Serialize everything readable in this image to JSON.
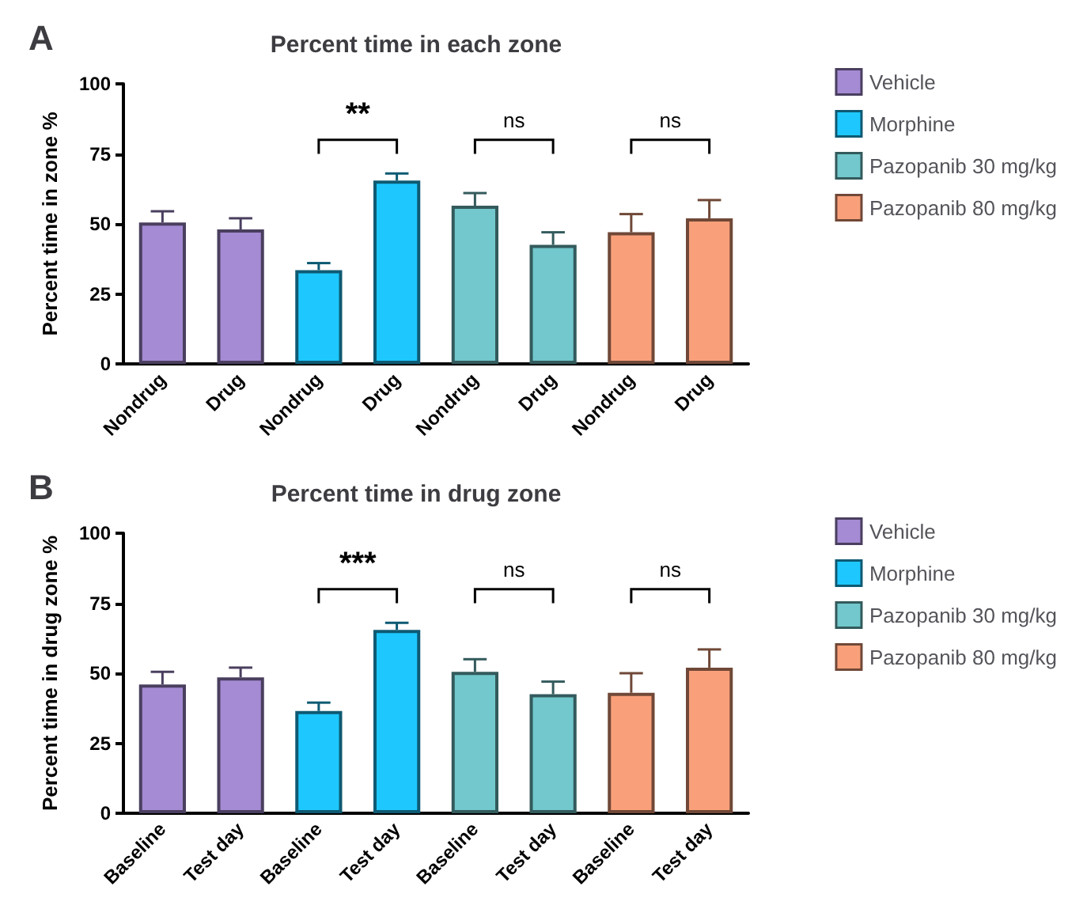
{
  "chart_data": [
    {
      "type": "bar",
      "title": "A",
      "subtitle": "Percent time in each zone",
      "ylabel": "Percent time in zone %",
      "categories": [
        "Nondrug",
        "Drug",
        "Nondrug",
        "Drug",
        "Nondrug",
        "Drug",
        "Nondrug",
        "Drug"
      ],
      "series": [
        {
          "name": "Vehicle",
          "color": "#a58bd4",
          "values": [
            50.5,
            48,
            null,
            null,
            null,
            null,
            null,
            null
          ],
          "errors": [
            4,
            4,
            null,
            null,
            null,
            null,
            null,
            null
          ]
        },
        {
          "name": "Morphine",
          "color": "#1ec8ff",
          "values": [
            null,
            null,
            33.5,
            65.5,
            null,
            null,
            null,
            null
          ],
          "errors": [
            null,
            null,
            2.5,
            2.5,
            null,
            null,
            null,
            null
          ]
        },
        {
          "name": "Pazopanib 30 mg/kg",
          "color": "#72c8cc",
          "values": [
            null,
            null,
            null,
            null,
            56.5,
            42.5,
            null,
            null
          ],
          "errors": [
            null,
            null,
            null,
            null,
            4.5,
            4.5,
            null,
            null
          ]
        },
        {
          "name": "Pazopanib 80 mg/kg",
          "color": "#f9a07a",
          "values": [
            null,
            null,
            null,
            null,
            null,
            null,
            47,
            52
          ],
          "errors": [
            null,
            null,
            null,
            null,
            null,
            null,
            6.5,
            6.5
          ]
        }
      ],
      "ylim": [
        0,
        100
      ],
      "yticks": [
        0,
        25,
        50,
        75,
        100
      ],
      "grid": false,
      "legend": "top right",
      "annotations": [
        "**",
        "ns",
        "ns"
      ]
    },
    {
      "type": "bar",
      "title": "B",
      "subtitle": "Percent time in drug zone",
      "ylabel": "Percent time in drug zone %",
      "categories": [
        "Baseline",
        "Test day",
        "Baseline",
        "Test day",
        "Baseline",
        "Test day",
        "Baseline",
        "Test day"
      ],
      "series": [
        {
          "name": "Vehicle",
          "color": "#a58bd4",
          "values": [
            46,
            48.5,
            null,
            null,
            null,
            null,
            null,
            null
          ],
          "errors": [
            4.5,
            3.5,
            null,
            null,
            null,
            null,
            null,
            null
          ]
        },
        {
          "name": "Morphine",
          "color": "#1ec8ff",
          "values": [
            null,
            null,
            36.5,
            65.5,
            null,
            null,
            null,
            null
          ],
          "errors": [
            null,
            null,
            3,
            2.5,
            null,
            null,
            null,
            null
          ]
        },
        {
          "name": "Pazopanib 30 mg/kg",
          "color": "#72c8cc",
          "values": [
            null,
            null,
            null,
            null,
            50.5,
            42.5,
            null,
            null
          ],
          "errors": [
            null,
            null,
            null,
            null,
            4.5,
            4.5,
            null,
            null
          ]
        },
        {
          "name": "Pazopanib 80 mg/kg",
          "color": "#f9a07a",
          "values": [
            null,
            null,
            null,
            null,
            null,
            null,
            43,
            52
          ],
          "errors": [
            null,
            null,
            null,
            null,
            null,
            null,
            7,
            6.5
          ]
        }
      ],
      "ylim": [
        0,
        100
      ],
      "yticks": [
        0,
        25,
        50,
        75,
        100
      ],
      "grid": false,
      "legend": "top right",
      "annotations": [
        "***",
        "ns",
        "ns"
      ]
    }
  ]
}
